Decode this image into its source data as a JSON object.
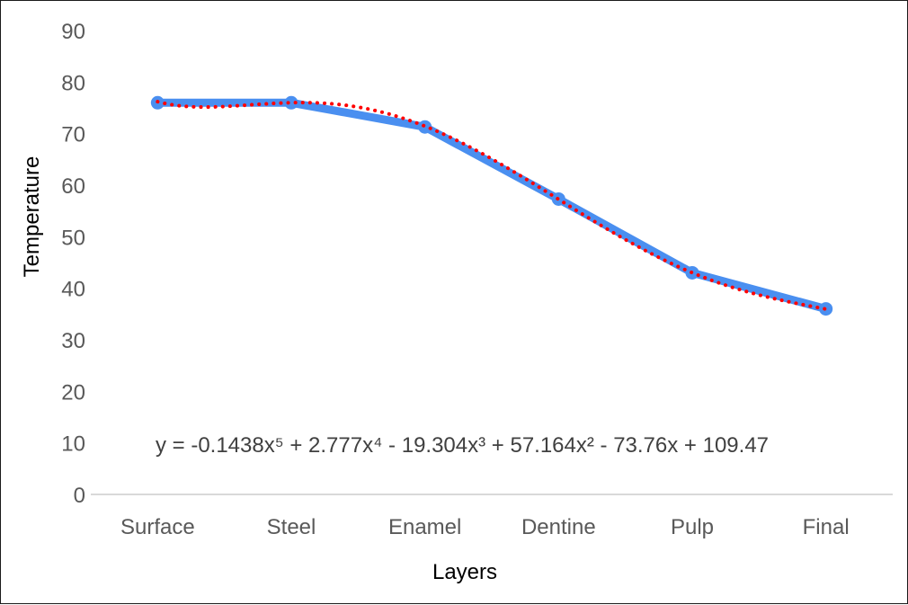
{
  "chart_data": {
    "type": "line",
    "title": "",
    "xlabel": "Layers",
    "ylabel": "Temperature",
    "categories": [
      "Surface",
      "Steel",
      "Enamel",
      "Dentine",
      "Pulp",
      "Final"
    ],
    "ylim": [
      0,
      90
    ],
    "yticks": [
      "0",
      "10",
      "20",
      "30",
      "40",
      "50",
      "60",
      "70",
      "80",
      "90"
    ],
    "grid": false,
    "series": [
      {
        "values": [
          76,
          76,
          71.3,
          57.3,
          43,
          36
        ],
        "color": "#4a8ff0",
        "marker": "circle"
      }
    ],
    "trendline": {
      "type": "polynomial",
      "order": 5,
      "coefficients": [
        -0.1438,
        2.777,
        -19.304,
        57.164,
        -73.76,
        109.47
      ],
      "color": "#ff0000",
      "style": "dotted",
      "equation_label": "y = -0.1438x⁵ + 2.777x⁴ - 19.304x³ + 57.164x² - 73.76x + 109.47"
    }
  }
}
